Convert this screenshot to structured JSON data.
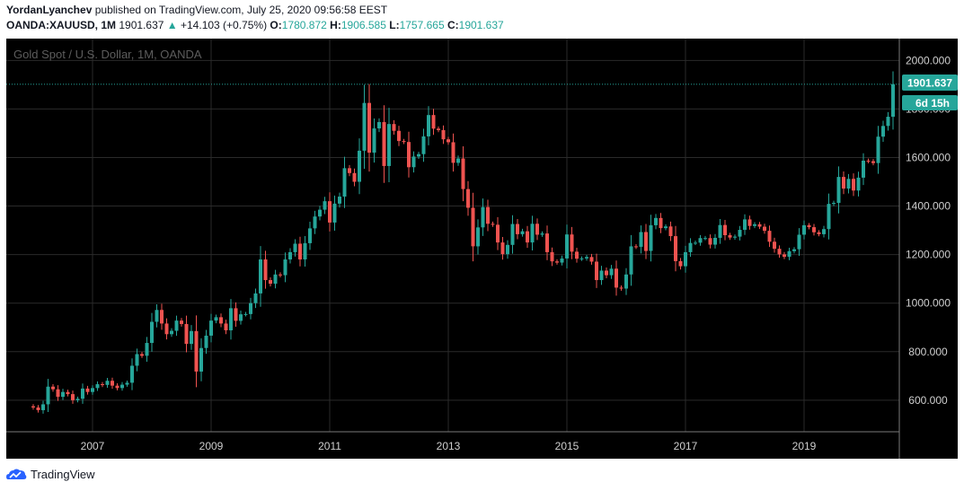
{
  "header": {
    "author": "YordanLyanchev",
    "published_text": "published on TradingView.com, July 25, 2020 09:56:58 EEST",
    "symbol": "OANDA:XAUUSD, 1M",
    "last_price": "1901.637",
    "change": "+14.103 (+0.75%)",
    "o_label": "O:",
    "o_value": "1780.872",
    "h_label": "H:",
    "h_value": "1906.585",
    "l_label": "L:",
    "l_value": "1757.665",
    "c_label": "C:",
    "c_value": "1901.637"
  },
  "chart_title": "Gold Spot / U.S. Dollar, 1M, OANDA",
  "price_tag": "1901.637",
  "countdown_tag": "6d 15h",
  "footer": {
    "brand": "TradingView"
  },
  "colors": {
    "background": "#000000",
    "grid": "#2a2a2a",
    "up": "#26a69a",
    "down": "#ef5350",
    "axis_text": "#cfcfcf"
  },
  "chart_data": {
    "type": "candlestick",
    "title": "Gold Spot / U.S. Dollar, 1M, OANDA",
    "interval": "1M",
    "y_range": [
      470,
      2090
    ],
    "y_ticks": [
      "600.000",
      "800.000",
      "1000.000",
      "1200.000",
      "1400.000",
      "1600.000",
      "1800.000",
      "2000.000"
    ],
    "x_ticks": [
      "2007",
      "2009",
      "2011",
      "2013",
      "2015",
      "2017",
      "2019"
    ],
    "x_range": [
      "2006-01",
      "2020-12"
    ],
    "last_price": 1901.637,
    "grid": true,
    "series_close": [
      {
        "year": 2006,
        "close": [
          570,
          559,
          583,
          656,
          645,
          614,
          634,
          625,
          600,
          606,
          648,
          634
        ]
      },
      {
        "year": 2007,
        "close": [
          650,
          666,
          663,
          680,
          660,
          650,
          664,
          672,
          742,
          790,
          783,
          836
        ]
      },
      {
        "year": 2008,
        "close": [
          923,
          972,
          916,
          872,
          886,
          928,
          914,
          832,
          885,
          718,
          815,
          866
        ]
      },
      {
        "year": 2009,
        "close": [
          928,
          942,
          916,
          888,
          979,
          927,
          954,
          955,
          1000,
          1040,
          1180,
          1095
        ]
      },
      {
        "year": 2010,
        "close": [
          1080,
          1118,
          1115,
          1180,
          1210,
          1245,
          1180,
          1247,
          1308,
          1357,
          1385,
          1420
        ]
      },
      {
        "year": 2011,
        "close": [
          1332,
          1410,
          1439,
          1556,
          1536,
          1500,
          1628,
          1825,
          1620,
          1720,
          1746,
          1565
        ]
      },
      {
        "year": 2012,
        "close": [
          1738,
          1710,
          1668,
          1664,
          1560,
          1604,
          1614,
          1687,
          1775,
          1719,
          1713,
          1675
        ]
      },
      {
        "year": 2013,
        "close": [
          1663,
          1578,
          1596,
          1470,
          1393,
          1234,
          1312,
          1396,
          1327,
          1323,
          1250,
          1202
        ]
      },
      {
        "year": 2014,
        "close": [
          1240,
          1326,
          1284,
          1296,
          1250,
          1327,
          1282,
          1287,
          1210,
          1172,
          1167,
          1184
        ]
      },
      {
        "year": 2015,
        "close": [
          1283,
          1212,
          1183,
          1184,
          1190,
          1171,
          1095,
          1134,
          1115,
          1142,
          1064,
          1060
        ]
      },
      {
        "year": 2016,
        "close": [
          1118,
          1234,
          1232,
          1293,
          1215,
          1321,
          1351,
          1309,
          1316,
          1276,
          1173,
          1152
        ]
      },
      {
        "year": 2017,
        "close": [
          1210,
          1248,
          1249,
          1268,
          1268,
          1241,
          1269,
          1322,
          1280,
          1270,
          1274,
          1302
        ]
      },
      {
        "year": 2018,
        "close": [
          1345,
          1318,
          1325,
          1315,
          1298,
          1253,
          1224,
          1201,
          1191,
          1214,
          1222,
          1282
        ]
      },
      {
        "year": 2019,
        "close": [
          1321,
          1313,
          1292,
          1284,
          1305,
          1409,
          1413,
          1520,
          1472,
          1512,
          1464,
          1517
        ]
      },
      {
        "year": 2020,
        "close": [
          1587,
          1585,
          1577,
          1686,
          1730,
          1768,
          1902
        ]
      }
    ]
  }
}
